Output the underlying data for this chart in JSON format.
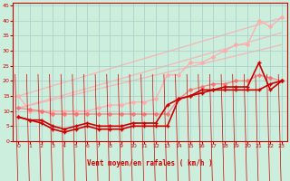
{
  "bg_color": "#cceedd",
  "grid_color": "#aacccc",
  "xlabel": "Vent moyen/en rafales ( km/h )",
  "xlabel_color": "#cc0000",
  "tick_color": "#cc0000",
  "arrow_color": "#cc0000",
  "xlim": [
    -0.5,
    23.5
  ],
  "ylim": [
    0,
    46
  ],
  "yticks": [
    0,
    5,
    10,
    15,
    20,
    25,
    30,
    35,
    40,
    45
  ],
  "xticks": [
    0,
    1,
    2,
    3,
    4,
    5,
    6,
    7,
    8,
    9,
    10,
    11,
    12,
    13,
    14,
    15,
    16,
    17,
    18,
    19,
    20,
    21,
    22,
    23
  ],
  "series": [
    {
      "color": "#ffaaaa",
      "alpha": 0.85,
      "lw": 1.0,
      "marker": "D",
      "ms": 2.0,
      "data": [
        [
          0,
          15
        ],
        [
          1,
          10
        ],
        [
          2,
          10
        ],
        [
          3,
          10
        ],
        [
          4,
          10
        ],
        [
          5,
          10
        ],
        [
          6,
          10
        ],
        [
          7,
          11
        ],
        [
          8,
          12
        ],
        [
          9,
          12
        ],
        [
          10,
          13
        ],
        [
          11,
          13
        ],
        [
          12,
          14
        ],
        [
          13,
          22
        ],
        [
          14,
          22
        ],
        [
          15,
          26
        ],
        [
          16,
          26
        ],
        [
          17,
          28
        ],
        [
          18,
          30
        ],
        [
          19,
          32
        ],
        [
          20,
          32
        ],
        [
          21,
          40
        ],
        [
          22,
          38
        ],
        [
          23,
          41
        ]
      ]
    },
    {
      "color": "#ffaaaa",
      "alpha": 0.75,
      "lw": 1.0,
      "marker": null,
      "ms": 0,
      "data": [
        [
          0,
          15
        ],
        [
          23,
          41
        ]
      ]
    },
    {
      "color": "#ffaaaa",
      "alpha": 0.75,
      "lw": 1.0,
      "marker": null,
      "ms": 0,
      "data": [
        [
          0,
          11
        ],
        [
          23,
          36
        ]
      ]
    },
    {
      "color": "#ffaaaa",
      "alpha": 0.75,
      "lw": 1.0,
      "marker": null,
      "ms": 0,
      "data": [
        [
          0,
          11
        ],
        [
          23,
          32
        ]
      ]
    },
    {
      "color": "#ff6666",
      "alpha": 0.7,
      "lw": 1.0,
      "marker": "D",
      "ms": 2.0,
      "data": [
        [
          0,
          11
        ],
        [
          1,
          10.5
        ],
        [
          2,
          10
        ],
        [
          3,
          9
        ],
        [
          4,
          9
        ],
        [
          5,
          9
        ],
        [
          6,
          9
        ],
        [
          7,
          9
        ],
        [
          8,
          9
        ],
        [
          9,
          9
        ],
        [
          10,
          9
        ],
        [
          11,
          9
        ],
        [
          12,
          9
        ],
        [
          13,
          9
        ],
        [
          14,
          14
        ],
        [
          15,
          17
        ],
        [
          16,
          18
        ],
        [
          17,
          19
        ],
        [
          18,
          19
        ],
        [
          19,
          20
        ],
        [
          20,
          20
        ],
        [
          21,
          22
        ],
        [
          22,
          21
        ],
        [
          23,
          20
        ]
      ]
    },
    {
      "color": "#cc0000",
      "alpha": 1.0,
      "lw": 1.2,
      "marker": "+",
      "ms": 3.5,
      "data": [
        [
          0,
          8
        ],
        [
          1,
          7
        ],
        [
          2,
          7
        ],
        [
          3,
          5
        ],
        [
          4,
          4
        ],
        [
          5,
          5
        ],
        [
          6,
          6
        ],
        [
          7,
          5
        ],
        [
          8,
          5
        ],
        [
          9,
          5
        ],
        [
          10,
          6
        ],
        [
          11,
          6
        ],
        [
          12,
          6
        ],
        [
          13,
          12
        ],
        [
          14,
          14
        ],
        [
          15,
          15
        ],
        [
          16,
          17
        ],
        [
          17,
          17
        ],
        [
          18,
          18
        ],
        [
          19,
          18
        ],
        [
          20,
          18
        ],
        [
          21,
          26
        ],
        [
          22,
          17
        ],
        [
          23,
          20
        ]
      ]
    },
    {
      "color": "#cc0000",
      "alpha": 1.0,
      "lw": 1.2,
      "marker": "+",
      "ms": 3.5,
      "data": [
        [
          0,
          8
        ],
        [
          1,
          7
        ],
        [
          2,
          6
        ],
        [
          3,
          4
        ],
        [
          4,
          3
        ],
        [
          5,
          4
        ],
        [
          6,
          5
        ],
        [
          7,
          4
        ],
        [
          8,
          4
        ],
        [
          9,
          4
        ],
        [
          10,
          5
        ],
        [
          11,
          5
        ],
        [
          12,
          5
        ],
        [
          13,
          5
        ],
        [
          14,
          14
        ],
        [
          15,
          15
        ],
        [
          16,
          16
        ],
        [
          17,
          17
        ],
        [
          18,
          17
        ],
        [
          19,
          17
        ],
        [
          20,
          17
        ],
        [
          21,
          17
        ],
        [
          22,
          19
        ],
        [
          23,
          20
        ]
      ]
    }
  ]
}
